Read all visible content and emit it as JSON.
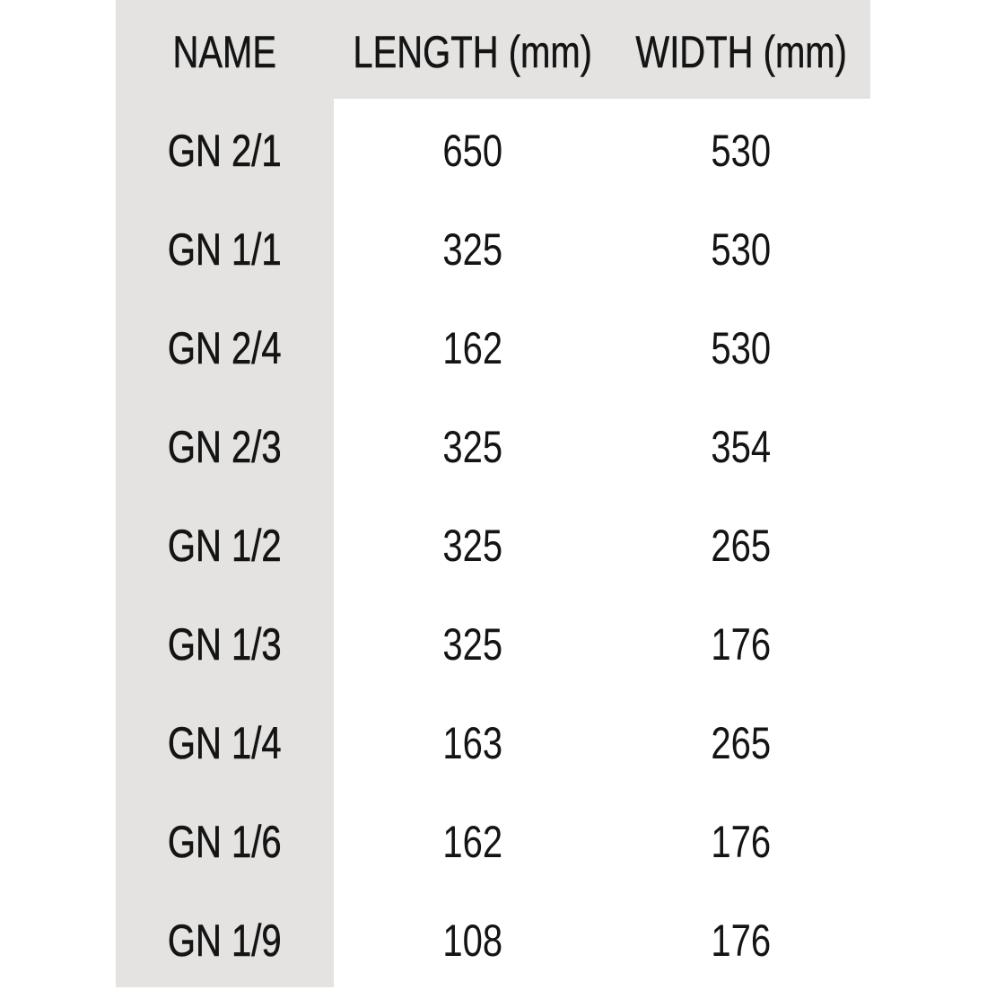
{
  "headers": [
    "NAME",
    "LENGTH (mm)",
    "WIDTH (mm)"
  ],
  "rows": [
    [
      "GN 2/1",
      "650",
      "530"
    ],
    [
      "GN 1/1",
      "325",
      "530"
    ],
    [
      "GN 2/4",
      "162",
      "530"
    ],
    [
      "GN 2/3",
      "325",
      "354"
    ],
    [
      "GN 1/2",
      "325",
      "265"
    ],
    [
      "GN 1/3",
      "325",
      "176"
    ],
    [
      "GN 1/4",
      "163",
      "265"
    ],
    [
      "GN 1/6",
      "162",
      "176"
    ],
    [
      "GN 1/9",
      "108",
      "176"
    ]
  ],
  "colors": {
    "shade": "#e4e3e2",
    "text": "#141414"
  }
}
